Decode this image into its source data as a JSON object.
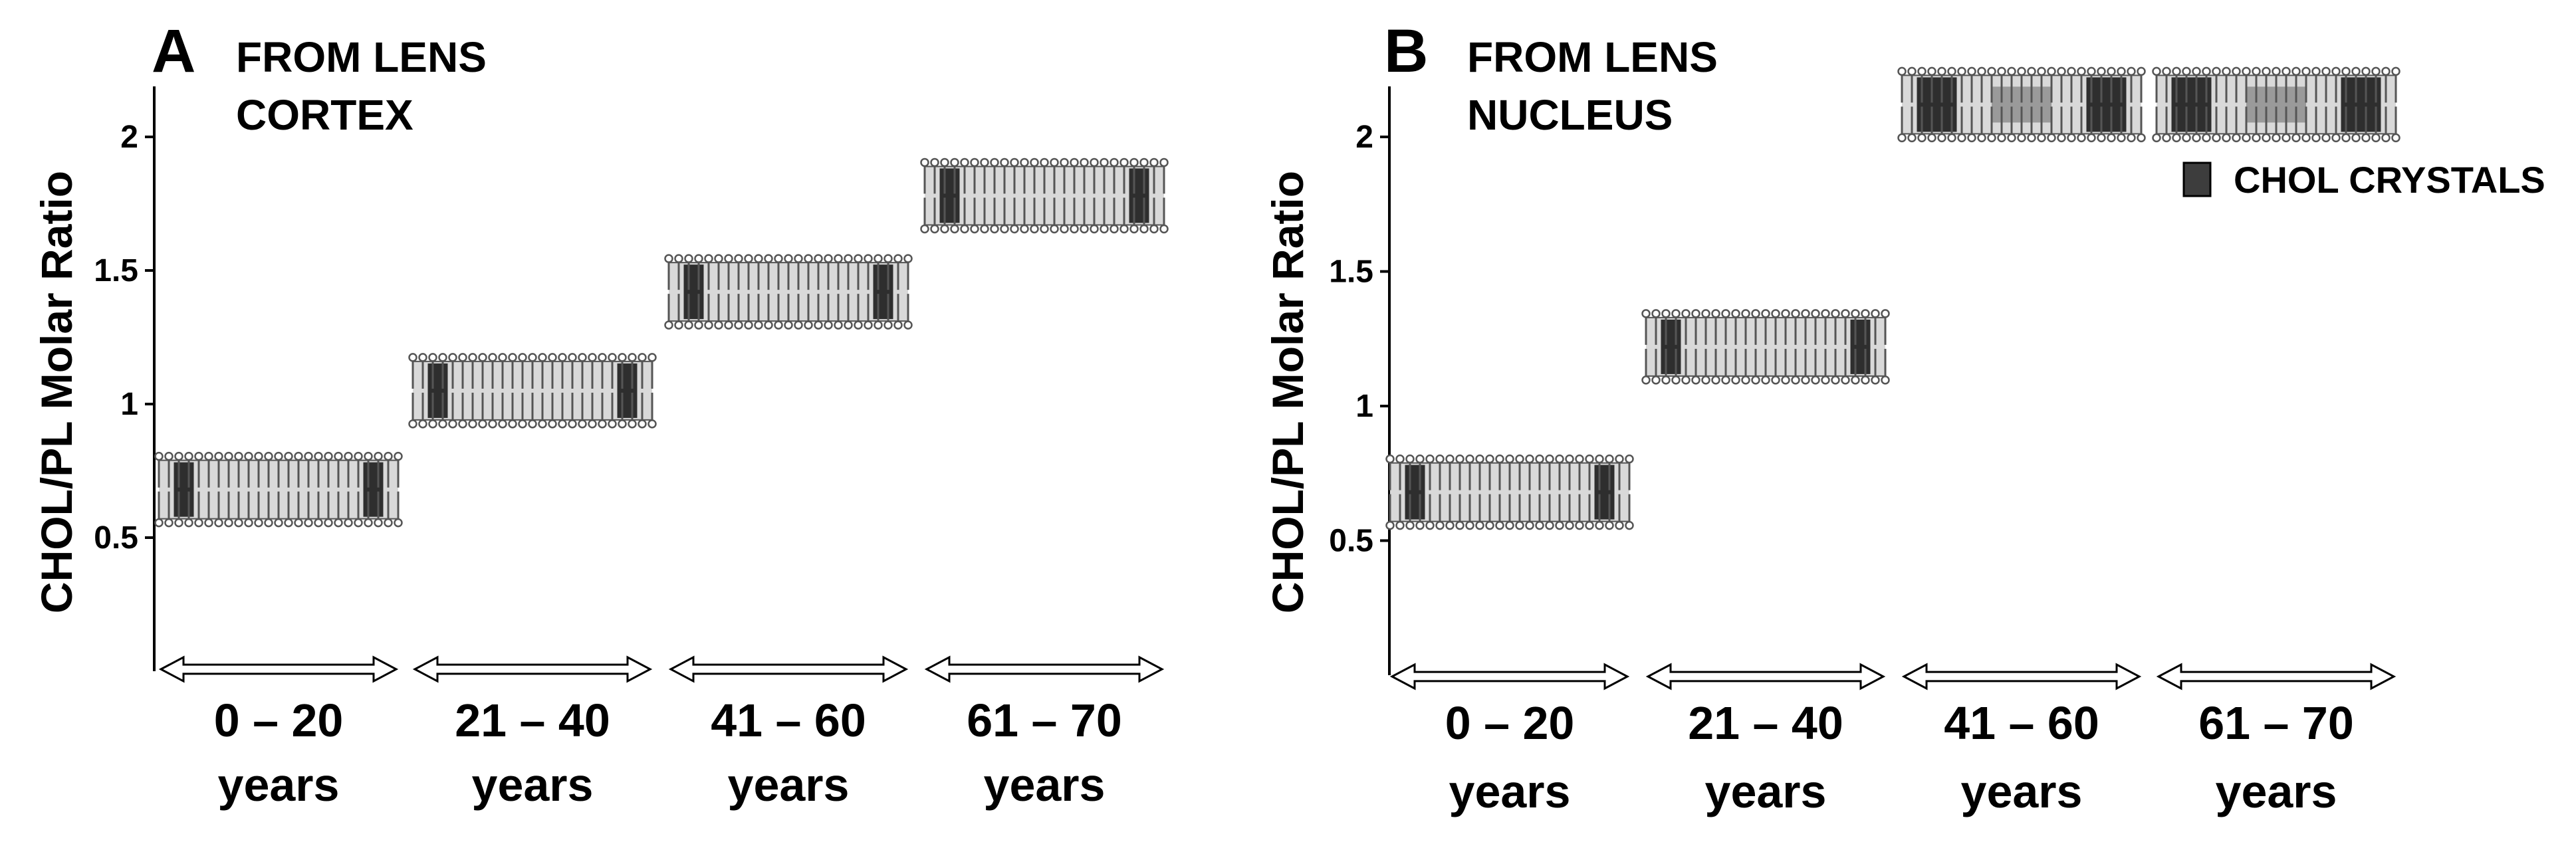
{
  "chart_data": [
    {
      "type": "bar",
      "panel": "A",
      "title": "FROM LENS CORTEX",
      "title_lines": [
        "FROM LENS",
        "CORTEX"
      ],
      "ylabel": "CHOL/PL Molar Ratio",
      "xlabel": "",
      "ylim": [
        0,
        2.2
      ],
      "yticks": [
        0.5,
        1,
        1.5,
        2
      ],
      "ytick_labels": [
        "0.5",
        "1",
        "1.5",
        "2"
      ],
      "categories": [
        "0 – 20 years",
        "21 – 40 years",
        "41 – 60 years",
        "61 – 70 years"
      ],
      "category_lines": [
        [
          "0 – 20",
          "years"
        ],
        [
          "21 – 40",
          "years"
        ],
        [
          "41 – 60",
          "years"
        ],
        [
          "61 – 70",
          "years"
        ]
      ],
      "values": [
        0.68,
        1.05,
        1.42,
        1.78
      ],
      "chol_crystals": [
        false,
        false,
        false,
        false
      ],
      "grid": false
    },
    {
      "type": "bar",
      "panel": "B",
      "title": "FROM LENS NUCLEUS",
      "title_lines": [
        "FROM LENS",
        "NUCLEUS"
      ],
      "ylabel": "CHOL/PL Molar Ratio",
      "xlabel": "",
      "ylim": [
        0,
        2.2
      ],
      "yticks": [
        0.5,
        1,
        1.5,
        2
      ],
      "ytick_labels": [
        "0.5",
        "1",
        "1.5",
        "2"
      ],
      "categories": [
        "0 – 20 years",
        "21 – 40 years",
        "41 – 60 years",
        "61 – 70 years"
      ],
      "category_lines": [
        [
          "0 – 20",
          "years"
        ],
        [
          "21 – 40",
          "years"
        ],
        [
          "41 – 60",
          "years"
        ],
        [
          "61 – 70",
          "years"
        ]
      ],
      "values": [
        0.68,
        1.22,
        2.12,
        2.12
      ],
      "chol_crystals": [
        false,
        false,
        true,
        true
      ],
      "legend": {
        "label": "CHOL CRYSTALS",
        "position": "top-right",
        "swatch_color": "#3d3d3d"
      },
      "grid": false
    }
  ],
  "colors": {
    "axis": "#000000",
    "lipid_head": "#ffffff",
    "lipid_outline": "#555555",
    "chol_domain": "#2e2e2e",
    "bilayer_core": "#d9d9d9"
  }
}
